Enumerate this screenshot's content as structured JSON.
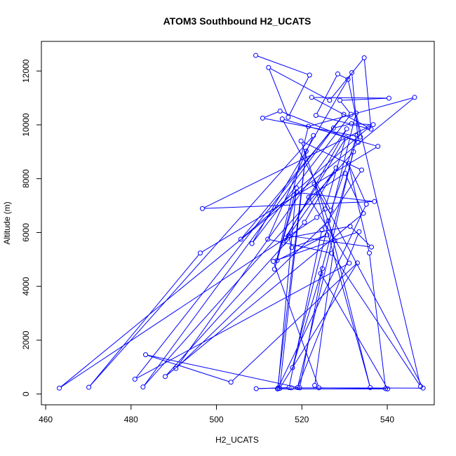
{
  "chart_data": {
    "type": "scatter",
    "title": "ATOM3 Southbound H2_UCATS",
    "xlabel": "H2_UCATS",
    "ylabel": "Altitude (m)",
    "xlim": [
      459,
      551
    ],
    "ylim": [
      -400,
      13100
    ],
    "xticks": [
      460,
      480,
      500,
      520,
      540
    ],
    "yticks": [
      0,
      2000,
      4000,
      6000,
      8000,
      10000,
      12000
    ],
    "grid": false,
    "line_color": "#0000ff",
    "marker": "open-circle",
    "series": [
      {
        "x": [
          509.2,
          521.8,
          516.8,
          512.2,
          526.5,
          534.6,
          536.2,
          523.3,
          528.4,
          530.8,
          533.7,
          510.8,
          514.9,
          533.2,
          531.7,
          508.3,
          531.5,
          528.9,
          540.4,
          522.3,
          535.6,
          505.7,
          527.4,
          531.6,
          536.7,
          496.7,
          537.0,
          518.8,
          513.6,
          521.5,
          546.4,
          463.2,
          523.5,
          525.4,
          530.3,
          516.1,
          531.3,
          536.3,
          516.9,
          517.6,
          525.9,
          514.2,
          518.7,
          514.4,
          535.1,
          530.9,
          535.8,
          539.6,
          524.0,
          513.3,
          533.4,
          519.0,
          532.9,
          526.8,
          515.4,
          537.8,
          496.2,
          470.1,
          522.7,
          512.0,
          527.0,
          547.8,
          532.7,
          517.8,
          524.8,
          519.5,
          483.4,
          503.4,
          533.0,
          514.8,
          521.0,
          514.3,
          540.1,
          524.4,
          532.1,
          482.8,
          529.8,
          480.9,
          531.1,
          521.6,
          530.1,
          534.4,
          488.0,
          520.6,
          528.0,
          515.7,
          530.5,
          490.5,
          526.2,
          536.0,
          522.9,
          548.4,
          517.5,
          509.3,
          517.0,
          524.7,
          534.0,
          519.8,
          527.7,
          523.0
        ],
        "y": [
          12580,
          11850,
          10280,
          12130,
          10910,
          12490,
          9840,
          10350,
          11890,
          11690,
          9550,
          10250,
          10510,
          9350,
          11940,
          5590,
          10390,
          10910,
          10990,
          11020,
          9900,
          5750,
          9880,
          10040,
          10010,
          6890,
          7150,
          7490,
          4640,
          9940,
          11020,
          220,
          6560,
          6870,
          9520,
          5790,
          6230,
          5460,
          5880,
          5440,
          5910,
          4960,
          7660,
          220,
          7050,
          8560,
          5240,
          200,
          230,
          4930,
          6030,
          240,
          9600,
          6820,
          10220,
          9200,
          5240,
          250,
          9600,
          5750,
          5230,
          280,
          10440,
          980,
          4660,
          230,
          1460,
          440,
          4870,
          210,
          9020,
          190,
          190,
          4480,
          9000,
          260,
          10390,
          550,
          4860,
          7310,
          8200,
          6710,
          650,
          6380,
          8400,
          5610,
          9850,
          950,
          6430,
          240,
          7800,
          220,
          230,
          200,
          240,
          6100,
          8320,
          9400,
          5700,
          320
        ]
      }
    ]
  }
}
